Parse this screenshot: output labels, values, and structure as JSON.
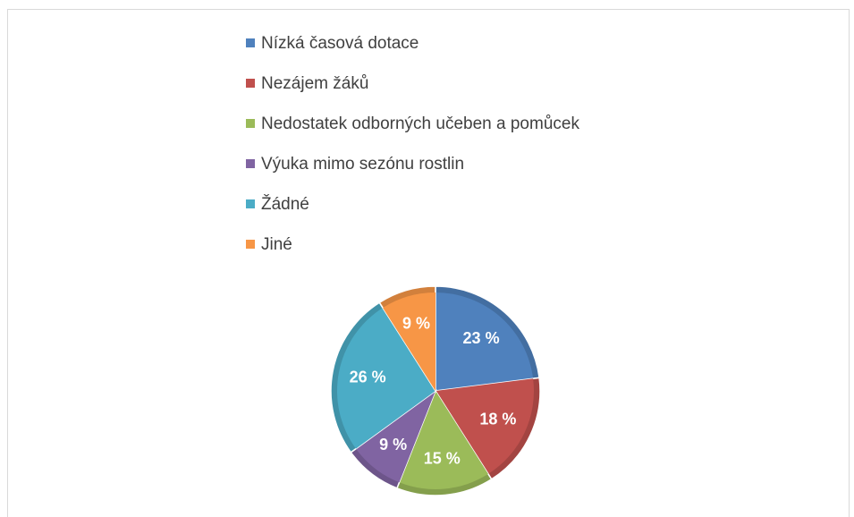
{
  "chart_data": {
    "type": "pie",
    "categories": [
      "Nízká časová dotace",
      "Nezájem žáků",
      "Nedostatek odborných učeben a pomůcek",
      "Výuka mimo sezónu rostlin",
      "Žádné",
      "Jiné"
    ],
    "values": [
      23,
      18,
      15,
      9,
      26,
      9
    ],
    "value_labels": [
      "23 %",
      "18 %",
      "15 %",
      "9 %",
      "26 %",
      "9 %"
    ],
    "colors": [
      "#4f81bd",
      "#c0504d",
      "#9bbb59",
      "#8064a2",
      "#4bacc6",
      "#f79646"
    ],
    "legend": "top"
  }
}
